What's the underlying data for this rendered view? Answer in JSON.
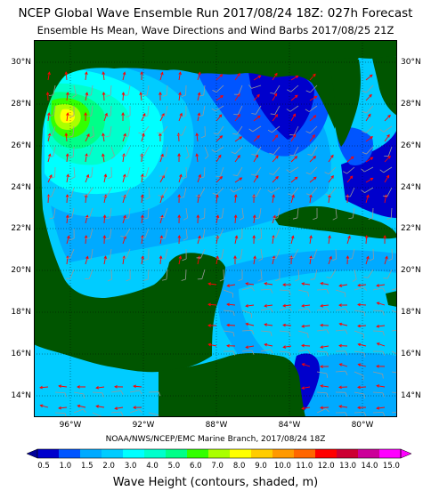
{
  "title": "NCEP Global Wave Ensemble  Run 2017/08/24 18Z: 027h Forecast",
  "subtitle": "Ensemble Hs Mean, Wave Directions and Wind Barbs  2017/08/25 21Z",
  "credit": "NOAA/NWS/NCEP/EMC Marine Branch, 2017/08/24 18Z",
  "lat_labels": [
    "30°N",
    "28°N",
    "26°N",
    "24°N",
    "22°N",
    "20°N",
    "18°N",
    "16°N",
    "14°N"
  ],
  "lon_labels": [
    "96°W",
    "92°W",
    "88°W",
    "84°W",
    "80°W"
  ],
  "colorbar": {
    "title": "Wave Height (contours, shaded, m)",
    "levels": [
      "0.5",
      "1.0",
      "1.5",
      "2.0",
      "3.0",
      "4.0",
      "5.0",
      "6.0",
      "7.0",
      "8.0",
      "9.0",
      "10.0",
      "11.0",
      "12.0",
      "13.0",
      "14.0",
      "15.0"
    ],
    "colors": [
      "#0000cc",
      "#0055ff",
      "#00aaff",
      "#00ccff",
      "#00ffff",
      "#00ffcc",
      "#00ff88",
      "#33ff00",
      "#aaff00",
      "#ffff00",
      "#ffcc00",
      "#ff9900",
      "#ff6600",
      "#ff0000",
      "#cc0033",
      "#cc0099",
      "#ff00ff"
    ],
    "under_color": "#000099",
    "over_color": "#ff00ff"
  },
  "colors": {
    "land": "#005500",
    "coast_buffer": "#cccccc",
    "wave_arrow": "#ff0000",
    "wind_barb": "#999999",
    "grid": "#000000"
  }
}
